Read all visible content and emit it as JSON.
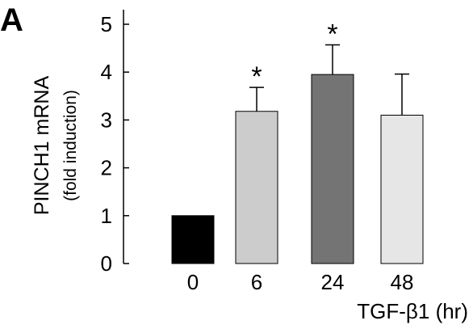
{
  "panel_label": "A",
  "chart_data": {
    "type": "bar",
    "categories": [
      "0",
      "6",
      "24",
      "48"
    ],
    "values": [
      1.0,
      3.18,
      3.95,
      3.1
    ],
    "errors": [
      0,
      0.5,
      0.62,
      0.86
    ],
    "significance": [
      "",
      "*",
      "*",
      ""
    ],
    "bar_colors": [
      "#000000",
      "#cccccc",
      "#747474",
      "#e6e6e6"
    ],
    "ylabel": "PINCH1 mRNA",
    "ylabel_sub": "(fold induction)",
    "xlabel": "TGF-β1 (hr)",
    "ylim": [
      0,
      5
    ],
    "yticks": [
      "0",
      "1",
      "2",
      "3",
      "4",
      "5"
    ],
    "grid": false
  }
}
